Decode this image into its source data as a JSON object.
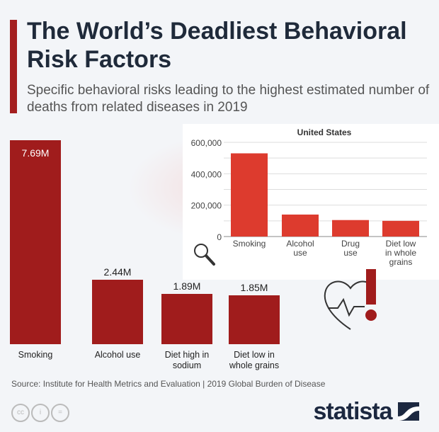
{
  "title": "The World’s Deadliest Behavioral Risk Factors",
  "subtitle": "Specific behavioral risks leading to the highest estimated number of deaths from related diseases in 2019",
  "source": "Source: Institute for Health Metrics and Evaluation | 2019 Global Burden of Disease",
  "brand": "statista",
  "colors": {
    "main_bar": "#a01c1c",
    "inset_bar": "#dd3b2e",
    "title": "#1f2a3a"
  },
  "icons": [
    "magnifier-icon",
    "heart-exclamation-icon",
    "cc-icon",
    "attribution-icon",
    "no-derivatives-icon",
    "statista-logo-icon"
  ],
  "chart_data": [
    {
      "type": "bar",
      "title": "",
      "categories": [
        "Smoking",
        "Alcohol use",
        "Diet high in sodium",
        "Diet low in whole grains"
      ],
      "values": [
        7.69,
        2.44,
        1.89,
        1.85
      ],
      "labels": [
        "7.69M",
        "2.44M",
        "1.89M",
        "1.85M"
      ],
      "unit": "M deaths"
    },
    {
      "type": "bar",
      "title": "United States",
      "categories": [
        "Smoking",
        "Alcohol use",
        "Drug use",
        "Diet low in whole grains"
      ],
      "values": [
        530000,
        140000,
        105000,
        100000
      ],
      "yticks": [
        "0",
        "200,000",
        "400,000",
        "600,000"
      ],
      "ylim": [
        0,
        600000
      ],
      "grid": true
    }
  ]
}
